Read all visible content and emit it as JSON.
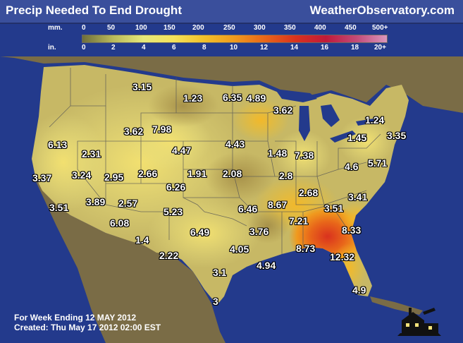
{
  "header": {
    "title": "Precip Needed To End Drought",
    "site": "WeatherObservatory.com"
  },
  "legend": {
    "mm_unit": "mm.",
    "in_unit": "in.",
    "mm_ticks": [
      "0",
      "50",
      "100",
      "150",
      "200",
      "250",
      "300",
      "350",
      "400",
      "450",
      "500+"
    ],
    "in_ticks": [
      "0",
      "2",
      "4",
      "6",
      "8",
      "10",
      "12",
      "14",
      "16",
      "18",
      "20+"
    ],
    "colors": [
      "#6e6e3c",
      "#b9b95a",
      "#e6e87a",
      "#f5e25a",
      "#f2c02a",
      "#f09a1e",
      "#e8651a",
      "#d9321e",
      "#c01a3a",
      "#c24a78",
      "#d996bc"
    ]
  },
  "map": {
    "background_ocean": "#233a8c",
    "land_base": "#bfae5e",
    "values": [
      {
        "text": "3.15"
      },
      {
        "text": "1.23"
      },
      {
        "text": "6.35"
      },
      {
        "text": "4.89"
      },
      {
        "text": "3.62"
      },
      {
        "text": "1.24"
      },
      {
        "text": "3.62"
      },
      {
        "text": "7.98"
      },
      {
        "text": "1.45"
      },
      {
        "text": "3.35"
      },
      {
        "text": "6.13"
      },
      {
        "text": "2.31"
      },
      {
        "text": "4.47"
      },
      {
        "text": "4.43"
      },
      {
        "text": "1.48"
      },
      {
        "text": "7.38"
      },
      {
        "text": "4.6"
      },
      {
        "text": "5.71"
      },
      {
        "text": "3.37"
      },
      {
        "text": "3.24"
      },
      {
        "text": "2.95"
      },
      {
        "text": "2.66"
      },
      {
        "text": "1.91"
      },
      {
        "text": "2.08"
      },
      {
        "text": "2.8"
      },
      {
        "text": "6.26"
      },
      {
        "text": "2.68"
      },
      {
        "text": "3.41"
      },
      {
        "text": "3.51"
      },
      {
        "text": "3.89"
      },
      {
        "text": "2.57"
      },
      {
        "text": "6.46"
      },
      {
        "text": "8.67"
      },
      {
        "text": "3.51"
      },
      {
        "text": "6.08"
      },
      {
        "text": "5.23"
      },
      {
        "text": "7.21"
      },
      {
        "text": "8.33"
      },
      {
        "text": "1.4"
      },
      {
        "text": "6.49"
      },
      {
        "text": "3.76"
      },
      {
        "text": "2.22"
      },
      {
        "text": "4.05"
      },
      {
        "text": "8.73"
      },
      {
        "text": "12.32"
      },
      {
        "text": "3.1"
      },
      {
        "text": "4.94"
      },
      {
        "text": "4.9"
      },
      {
        "text": "3"
      }
    ]
  },
  "footer": {
    "line1": "For Week Ending 12 MAY 2012",
    "line2": "Created:  Thu May 17 2012 02:00 EST"
  }
}
